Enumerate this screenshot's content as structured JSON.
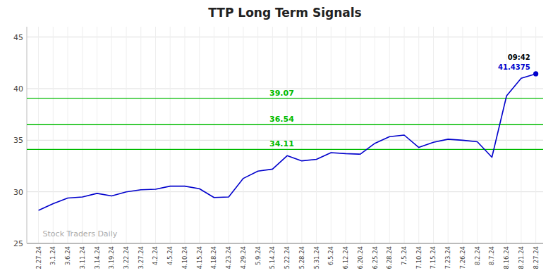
{
  "chart_data": {
    "type": "line",
    "title": "TTP Long Term Signals",
    "watermark": "Stock Traders Daily",
    "annotations": [
      {
        "text": "09:42",
        "color": "#000000"
      },
      {
        "text": "41.4375",
        "color": "#0000cc"
      }
    ],
    "reference_lines": [
      {
        "value": 39.07,
        "color": "#00bb00"
      },
      {
        "value": 36.54,
        "color": "#00bb00"
      },
      {
        "value": 34.11,
        "color": "#00bb00"
      }
    ],
    "categories": [
      "2.27.24",
      "3.1.24",
      "3.6.24",
      "3.11.24",
      "3.14.24",
      "3.19.24",
      "3.22.24",
      "3.27.24",
      "4.2.24",
      "4.5.24",
      "4.10.24",
      "4.15.24",
      "4.18.24",
      "4.23.24",
      "4.29.24",
      "5.9.24",
      "5.14.24",
      "5.22.24",
      "5.28.24",
      "5.31.24",
      "6.5.24",
      "6.12.24",
      "6.20.24",
      "6.25.24",
      "6.28.24",
      "7.5.24",
      "7.10.24",
      "7.15.24",
      "7.23.24",
      "7.26.24",
      "8.2.24",
      "8.7.24",
      "8.16.24",
      "8.21.24",
      "8.27.24"
    ],
    "values": [
      28.2,
      28.85,
      29.4,
      29.5,
      29.85,
      29.6,
      30.0,
      30.2,
      30.25,
      30.55,
      30.55,
      30.3,
      29.45,
      29.5,
      31.3,
      32.0,
      32.2,
      33.5,
      33.0,
      33.15,
      33.8,
      33.7,
      33.65,
      34.7,
      35.35,
      35.5,
      34.3,
      34.8,
      35.1,
      35.0,
      34.85,
      33.35,
      39.3,
      41.0,
      41.4375
    ],
    "color": "#0000cc",
    "marker": "last",
    "ylim": [
      25,
      46
    ],
    "yticks": [
      25,
      30,
      35,
      40,
      45
    ],
    "grid": true
  }
}
